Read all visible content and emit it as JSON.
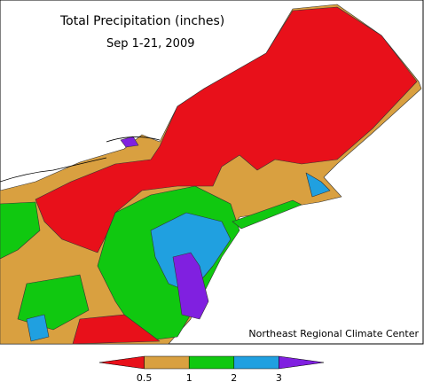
{
  "header": {
    "title": "Total Precipitation (inches)",
    "subtitle": "Sep 1-21, 2009"
  },
  "credit": "Northeast Regional Climate Center",
  "legend": {
    "colors": [
      "#e8101a",
      "#d9a040",
      "#10c810",
      "#20a0e0",
      "#8020e0"
    ],
    "ticks": [
      "0.5",
      "1",
      "2",
      "3"
    ]
  }
}
